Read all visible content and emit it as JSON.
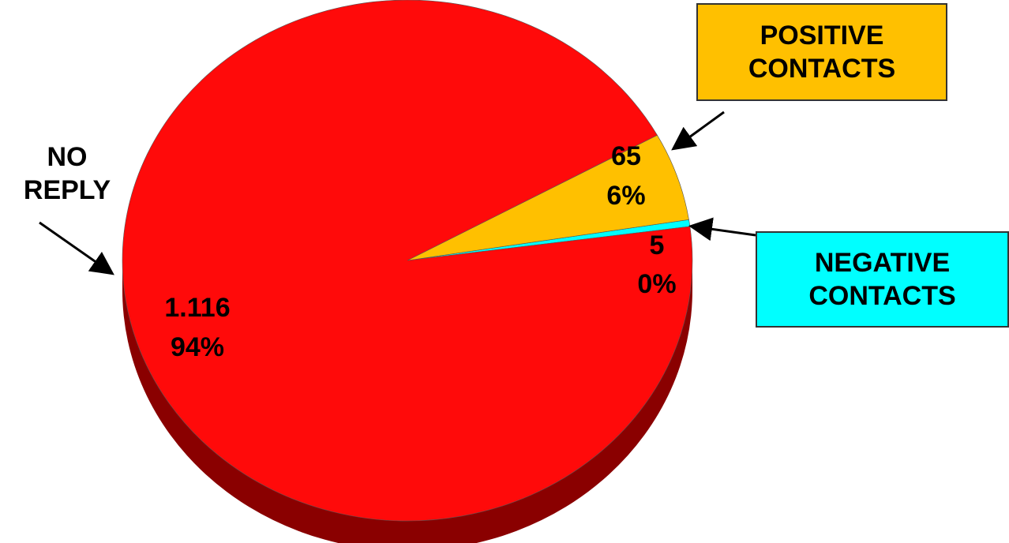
{
  "chart_data": {
    "type": "pie",
    "categories": [
      "NO REPLY",
      "POSITIVE CONTACTS",
      "NEGATIVE CONTACTS"
    ],
    "values": [
      1116,
      65,
      5
    ],
    "value_labels": [
      "1.116",
      "65",
      "5"
    ],
    "percent_labels": [
      "94%",
      "6%",
      "0%"
    ],
    "colors": [
      "#ff0a0a",
      "#ffc000",
      "#00ffff"
    ]
  }
}
